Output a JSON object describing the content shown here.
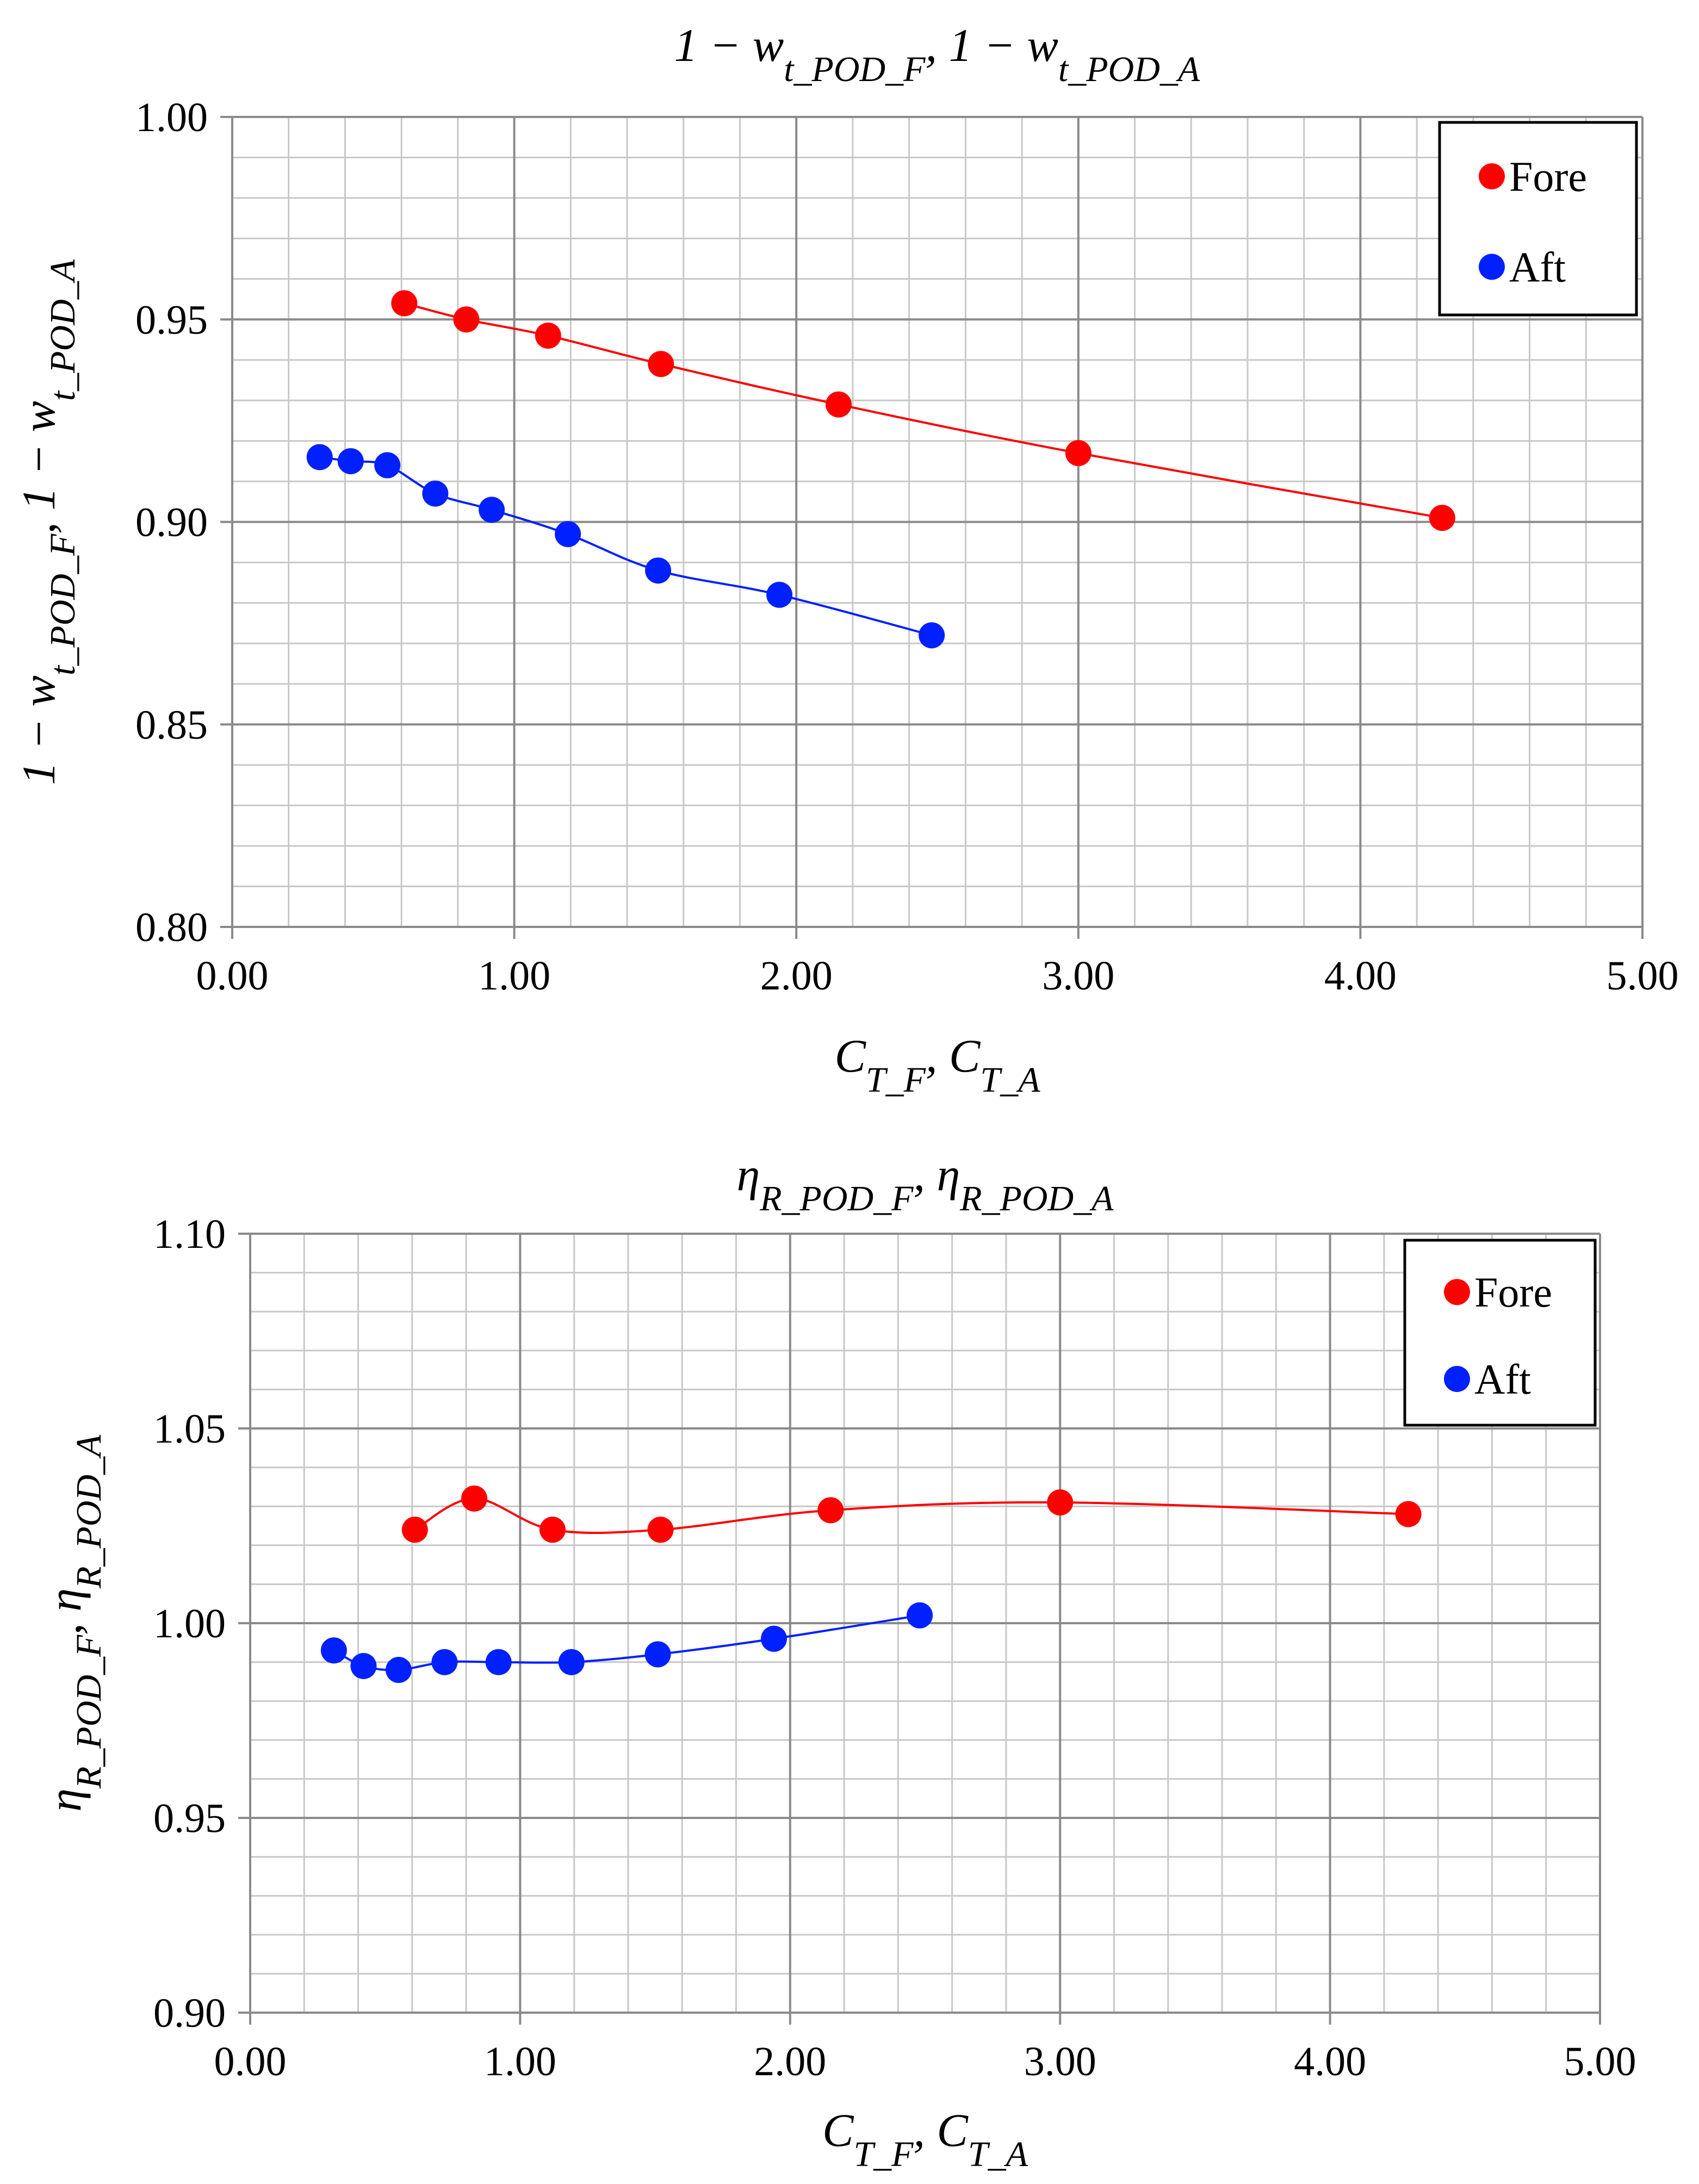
{
  "colors": {
    "fore": "#ff0000",
    "aft": "#0020ff",
    "grid_major": "#8a8a8a",
    "grid_minor": "#c8c8c8"
  },
  "chart_data": [
    {
      "type": "scatter",
      "title": "1 − w_t_POD_F, 1 − w_t_POD_A",
      "title_parts": {
        "a": "1 − w",
        "a_sub": "t_POD_F",
        "sep": ", 1 − w",
        "b_sub": "t_POD_A"
      },
      "xlabel": "C_T_F, C_T_A",
      "xlabel_parts": {
        "a": "C",
        "a_sub": "T_F",
        "sep": ", C",
        "b_sub": "T_A"
      },
      "ylabel": "1 − w_t_POD_F, 1 − w_t_POD_A",
      "ylabel_parts": {
        "a": "1 − w",
        "a_sub": "t_POD_F",
        "sep": ", 1 − w",
        "b_sub": "t_POD_A"
      },
      "xlim": [
        0,
        5
      ],
      "ylim": [
        0.8,
        1.0
      ],
      "x_ticks": [
        "0.00",
        "1.00",
        "2.00",
        "3.00",
        "4.00",
        "5.00"
      ],
      "y_ticks": [
        "0.80",
        "0.85",
        "0.90",
        "0.95",
        "1.00"
      ],
      "legend_position": "top-right",
      "series": [
        {
          "name": "Fore",
          "color": "#ff0000",
          "x": [
            0.61,
            0.83,
            1.12,
            1.52,
            2.15,
            3.0,
            4.29
          ],
          "y": [
            0.954,
            0.95,
            0.946,
            0.939,
            0.929,
            0.917,
            0.901
          ]
        },
        {
          "name": "Aft",
          "color": "#0020ff",
          "x": [
            0.31,
            0.42,
            0.55,
            0.72,
            0.92,
            1.19,
            1.51,
            1.94,
            2.48
          ],
          "y": [
            0.916,
            0.915,
            0.914,
            0.907,
            0.903,
            0.897,
            0.888,
            0.882,
            0.872
          ]
        }
      ]
    },
    {
      "type": "scatter",
      "title": "η_R_POD_F, η_R_POD_A",
      "title_parts": {
        "a": "η",
        "a_sub": "R_POD_F",
        "sep": ", η",
        "b_sub": "R_POD_A"
      },
      "xlabel": "C_T_F, C_T_A",
      "xlabel_parts": {
        "a": "C",
        "a_sub": "T_F",
        "sep": ", C",
        "b_sub": "T_A"
      },
      "ylabel": "η_R_POD_F, η_R_POD_A",
      "ylabel_parts": {
        "a": "η",
        "a_sub": "R_POD_F",
        "sep": ", η",
        "b_sub": "R_POD_A"
      },
      "xlim": [
        0,
        5
      ],
      "ylim": [
        0.9,
        1.1
      ],
      "x_ticks": [
        "0.00",
        "1.00",
        "2.00",
        "3.00",
        "4.00",
        "5.00"
      ],
      "y_ticks": [
        "0.90",
        "0.95",
        "1.00",
        "1.05",
        "1.10"
      ],
      "legend_position": "top-right",
      "series": [
        {
          "name": "Fore",
          "color": "#ff0000",
          "x": [
            0.61,
            0.83,
            1.12,
            1.52,
            2.15,
            3.0,
            4.29
          ],
          "y": [
            1.024,
            1.032,
            1.024,
            1.024,
            1.029,
            1.031,
            1.028
          ]
        },
        {
          "name": "Aft",
          "color": "#0020ff",
          "x": [
            0.31,
            0.42,
            0.55,
            0.72,
            0.92,
            1.19,
            1.51,
            1.94,
            2.48
          ],
          "y": [
            0.993,
            0.989,
            0.988,
            0.99,
            0.99,
            0.99,
            0.992,
            0.996,
            1.002
          ]
        }
      ]
    }
  ]
}
